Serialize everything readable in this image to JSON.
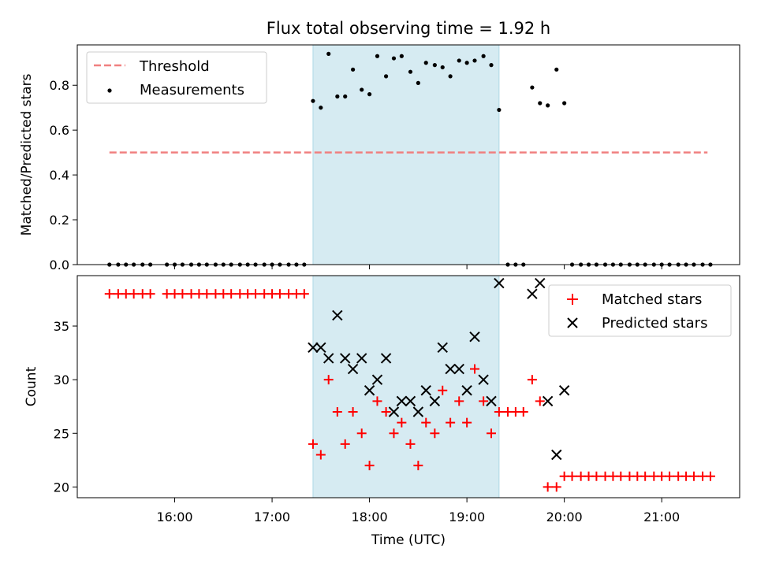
{
  "chart_data": [
    {
      "type": "scatter",
      "title": "Flux total observing time = 1.92 h",
      "ylabel": "Matched/Predicted stars",
      "xlabel": "",
      "xlim_hours": [
        15.0,
        21.8
      ],
      "ylim": [
        0.0,
        0.98
      ],
      "yticks": [
        0.0,
        0.2,
        0.4,
        0.6,
        0.8
      ],
      "ytick_labels": [
        "0.0",
        "0.2",
        "0.4",
        "0.6",
        "0.8"
      ],
      "legend_position": "top-left",
      "shaded_span_hours": [
        17.42,
        19.33
      ],
      "shade_color": "#add8e6",
      "threshold": {
        "name": "Threshold",
        "value": 0.5,
        "x_range_hours": [
          15.33,
          21.47
        ],
        "color": "#f08080"
      },
      "measurements": {
        "name": "Measurements",
        "color": "#000000",
        "x": [
          15.33,
          15.42,
          15.5,
          15.58,
          15.67,
          15.75,
          15.92,
          16.0,
          16.08,
          16.17,
          16.25,
          16.33,
          16.42,
          16.5,
          16.58,
          16.67,
          16.75,
          16.83,
          16.92,
          17.0,
          17.08,
          17.17,
          17.25,
          17.33,
          17.42,
          17.5,
          17.58,
          17.67,
          17.75,
          17.83,
          17.92,
          18.0,
          18.08,
          18.17,
          18.25,
          18.33,
          18.42,
          18.5,
          18.58,
          18.67,
          18.75,
          18.83,
          18.92,
          19.0,
          19.08,
          19.17,
          19.25,
          19.33,
          19.42,
          19.5,
          19.58,
          19.67,
          19.75,
          19.83,
          19.92,
          20.0,
          20.08,
          20.17,
          20.25,
          20.33,
          20.42,
          20.5,
          20.58,
          20.67,
          20.75,
          20.83,
          20.92,
          21.0,
          21.08,
          21.17,
          21.25,
          21.33,
          21.42,
          21.5
        ],
        "y": [
          0,
          0,
          0,
          0,
          0,
          0,
          0,
          0,
          0,
          0,
          0,
          0,
          0,
          0,
          0,
          0,
          0,
          0,
          0,
          0,
          0,
          0,
          0,
          0,
          0.73,
          0.7,
          0.94,
          0.75,
          0.75,
          0.87,
          0.78,
          0.76,
          0.93,
          0.84,
          0.92,
          0.93,
          0.86,
          0.81,
          0.9,
          0.89,
          0.88,
          0.84,
          0.91,
          0.9,
          0.91,
          0.93,
          0.89,
          0.69,
          0,
          0,
          0,
          0.79,
          0.72,
          0.71,
          0.87,
          0.72,
          0,
          0,
          0,
          0,
          0,
          0,
          0,
          0,
          0,
          0,
          0,
          0,
          0,
          0,
          0,
          0,
          0,
          0
        ]
      }
    },
    {
      "type": "scatter",
      "title": "",
      "ylabel": "Count",
      "xlabel": "Time (UTC)",
      "xlim_hours": [
        15.0,
        21.8
      ],
      "ylim": [
        19.0,
        39.7
      ],
      "yticks": [
        20,
        25,
        30,
        35
      ],
      "ytick_labels": [
        "20",
        "25",
        "30",
        "35"
      ],
      "xticks_hours": [
        16,
        17,
        18,
        19,
        20,
        21
      ],
      "xtick_labels": [
        "16:00",
        "17:00",
        "18:00",
        "19:00",
        "20:00",
        "21:00"
      ],
      "legend_position": "top-right",
      "shaded_span_hours": [
        17.42,
        19.33
      ],
      "shade_color": "#add8e6",
      "series": [
        {
          "name": "Matched stars",
          "marker": "plus",
          "color": "#ff0000",
          "x": [
            15.33,
            15.42,
            15.5,
            15.58,
            15.67,
            15.75,
            15.92,
            16.0,
            16.08,
            16.17,
            16.25,
            16.33,
            16.42,
            16.5,
            16.58,
            16.67,
            16.75,
            16.83,
            16.92,
            17.0,
            17.08,
            17.17,
            17.25,
            17.33,
            17.42,
            17.5,
            17.58,
            17.67,
            17.75,
            17.83,
            17.92,
            18.0,
            18.08,
            18.17,
            18.25,
            18.33,
            18.42,
            18.5,
            18.58,
            18.67,
            18.75,
            18.83,
            18.92,
            19.0,
            19.08,
            19.17,
            19.25,
            19.33,
            19.42,
            19.5,
            19.58,
            19.67,
            19.75,
            19.83,
            19.92,
            20.0,
            20.08,
            20.17,
            20.25,
            20.33,
            20.42,
            20.5,
            20.58,
            20.67,
            20.75,
            20.83,
            20.92,
            21.0,
            21.08,
            21.17,
            21.25,
            21.33,
            21.42,
            21.5
          ],
          "y": [
            38,
            38,
            38,
            38,
            38,
            38,
            38,
            38,
            38,
            38,
            38,
            38,
            38,
            38,
            38,
            38,
            38,
            38,
            38,
            38,
            38,
            38,
            38,
            38,
            24,
            23,
            30,
            27,
            24,
            27,
            25,
            22,
            28,
            27,
            25,
            26,
            24,
            22,
            26,
            25,
            29,
            26,
            28,
            26,
            31,
            28,
            25,
            27,
            27,
            27,
            27,
            30,
            28,
            20,
            20,
            21,
            21,
            21,
            21,
            21,
            21,
            21,
            21,
            21,
            21,
            21,
            21,
            21,
            21,
            21,
            21,
            21,
            21,
            21
          ]
        },
        {
          "name": "Predicted stars",
          "marker": "x",
          "color": "#000000",
          "x": [
            17.42,
            17.5,
            17.58,
            17.67,
            17.75,
            17.83,
            17.92,
            18.0,
            18.08,
            18.17,
            18.25,
            18.33,
            18.42,
            18.5,
            18.58,
            18.67,
            18.75,
            18.83,
            18.92,
            19.0,
            19.08,
            19.17,
            19.25,
            19.33,
            19.67,
            19.75,
            19.83,
            19.92,
            20.0
          ],
          "y": [
            33,
            33,
            32,
            36,
            32,
            31,
            32,
            29,
            30,
            32,
            27,
            28,
            28,
            27,
            29,
            28,
            33,
            31,
            31,
            29,
            34,
            30,
            28,
            39,
            38,
            39,
            28,
            23,
            29
          ]
        }
      ]
    }
  ]
}
